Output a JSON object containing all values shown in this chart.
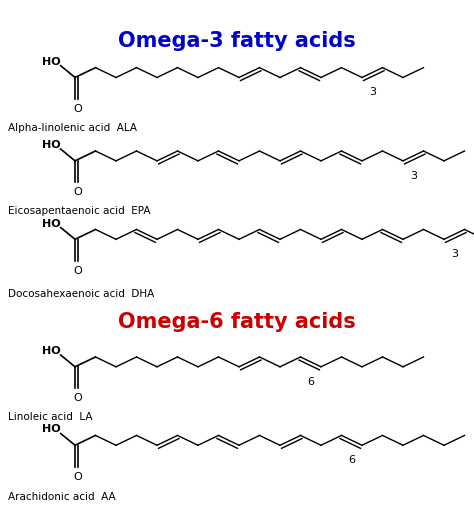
{
  "title_omega3": "Omega-3 fatty acids",
  "title_omega6": "Omega-6 fatty acids",
  "title_color_omega3": "#0000CC",
  "title_color_omega6": "#CC0000",
  "background_color": "#FFFFFF",
  "figsize": [
    4.74,
    5.1
  ],
  "dpi": 100,
  "label_names": [
    "Alpha-linolenic acid  ALA",
    "Eicosapentaenoic acid  EPA",
    "Docosahexaenoic acid  DHA",
    "Linoleic acid  LA",
    "Arachidonic acid  AA"
  ],
  "omega_labels": [
    "3",
    "3",
    "3",
    "6",
    "6"
  ]
}
